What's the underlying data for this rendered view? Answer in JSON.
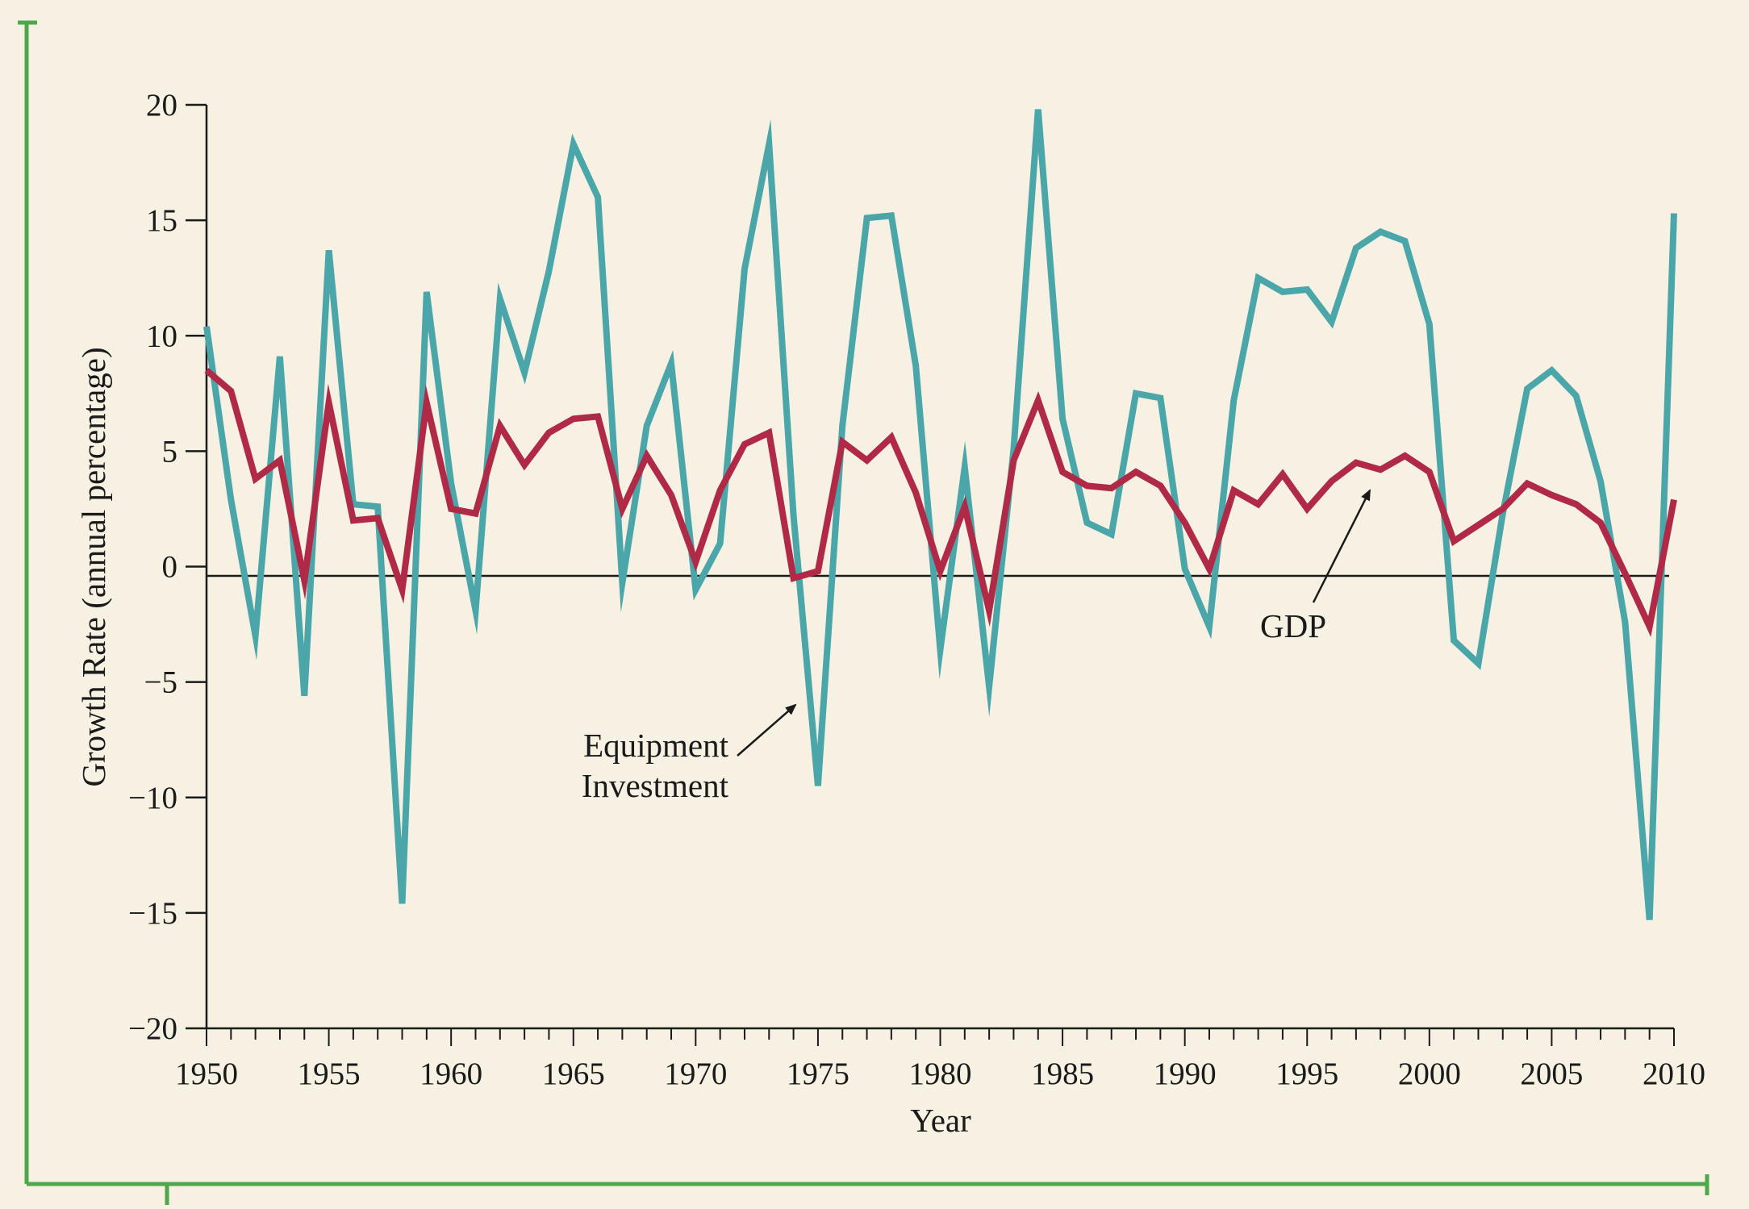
{
  "chart_data": {
    "type": "line",
    "title": "",
    "xlabel": "Year",
    "ylabel": "Growth Rate (annual percentage)",
    "xlim": [
      1950,
      2010
    ],
    "ylim": [
      -20,
      20
    ],
    "x_ticks": [
      1950,
      1955,
      1960,
      1965,
      1970,
      1975,
      1980,
      1985,
      1990,
      1995,
      2000,
      2005,
      2010
    ],
    "x_tick_labels": [
      "1950",
      "1955",
      "1960",
      "1965",
      "1970",
      "1975",
      "1980",
      "1985",
      "1990",
      "1995",
      "2000",
      "2005",
      "2010"
    ],
    "y_ticks": [
      20,
      15,
      10,
      5,
      0,
      -5,
      -10,
      -15,
      -20
    ],
    "y_tick_labels": [
      "20",
      "15",
      "10",
      "5",
      "0",
      "−15",
      "−20"
    ],
    "y_tick_labels_full": [
      "20",
      "15",
      "10",
      "5",
      "0",
      "−5",
      "−10",
      "−15",
      "−20"
    ],
    "reference_line_y": -0.4,
    "grid": false,
    "legend": "none",
    "x": [
      1950,
      1951,
      1952,
      1953,
      1954,
      1955,
      1956,
      1957,
      1958,
      1959,
      1960,
      1961,
      1962,
      1963,
      1964,
      1965,
      1966,
      1967,
      1968,
      1969,
      1970,
      1971,
      1972,
      1973,
      1974,
      1975,
      1976,
      1977,
      1978,
      1979,
      1980,
      1981,
      1982,
      1983,
      1984,
      1985,
      1986,
      1987,
      1988,
      1989,
      1990,
      1991,
      1992,
      1993,
      1994,
      1995,
      1996,
      1997,
      1998,
      1999,
      2000,
      2001,
      2002,
      2003,
      2004,
      2005,
      2006,
      2007,
      2008,
      2009,
      2010
    ],
    "series": [
      {
        "name": "Equipment Investment",
        "color": "#4aa6a8",
        "values": [
          10.4,
          2.9,
          -3.0,
          9.1,
          -5.6,
          13.7,
          2.7,
          2.6,
          -14.6,
          11.9,
          3.6,
          -1.9,
          11.6,
          8.4,
          12.8,
          18.3,
          16.0,
          -0.7,
          6.1,
          8.8,
          -1.0,
          1.0,
          12.9,
          18.3,
          2.2,
          -9.5,
          6.1,
          15.1,
          15.2,
          8.7,
          -3.6,
          4.3,
          -5.2,
          5.1,
          19.8,
          6.4,
          1.9,
          1.4,
          7.5,
          7.3,
          -0.1,
          -2.6,
          7.2,
          12.5,
          11.9,
          12.0,
          10.6,
          13.8,
          14.5,
          14.1,
          10.5,
          -3.2,
          -4.2,
          2.3,
          7.7,
          8.5,
          7.4,
          3.7,
          -2.4,
          -15.3,
          15.3
        ]
      },
      {
        "name": "GDP",
        "color": "#b02a48",
        "values": [
          8.5,
          7.6,
          3.8,
          4.6,
          -0.6,
          7.1,
          2.0,
          2.1,
          -1.0,
          7.1,
          2.5,
          2.3,
          6.1,
          4.4,
          5.8,
          6.4,
          6.5,
          2.5,
          4.8,
          3.1,
          0.2,
          3.3,
          5.3,
          5.8,
          -0.5,
          -0.2,
          5.4,
          4.6,
          5.6,
          3.2,
          -0.2,
          2.6,
          -1.9,
          4.6,
          7.2,
          4.1,
          3.5,
          3.4,
          4.1,
          3.5,
          1.9,
          -0.1,
          3.3,
          2.7,
          4.0,
          2.5,
          3.7,
          4.5,
          4.2,
          4.8,
          4.1,
          1.1,
          1.8,
          2.5,
          3.6,
          3.1,
          2.7,
          1.9,
          -0.3,
          -2.6,
          2.9
        ]
      }
    ],
    "annotations": [
      {
        "text_lines": [
          "Equipment",
          "Investment"
        ],
        "points_to_series": "Equipment Investment",
        "points_to_x": 1974
      },
      {
        "text_lines": [
          "GDP"
        ],
        "points_to_series": "GDP",
        "points_to_x": 1997
      }
    ]
  },
  "colors": {
    "background": "#f7f1e3",
    "axis": "#1a1a1a",
    "frame": "#4ea84a",
    "equipment_line": "#4aa6a8",
    "gdp_line": "#b02a48"
  },
  "labels": {
    "x_axis_title": "Year",
    "y_axis_title": "Growth Rate (annual percentage)",
    "equipment_annotation_line1": "Equipment",
    "equipment_annotation_line2": "Investment",
    "gdp_annotation": "GDP"
  }
}
